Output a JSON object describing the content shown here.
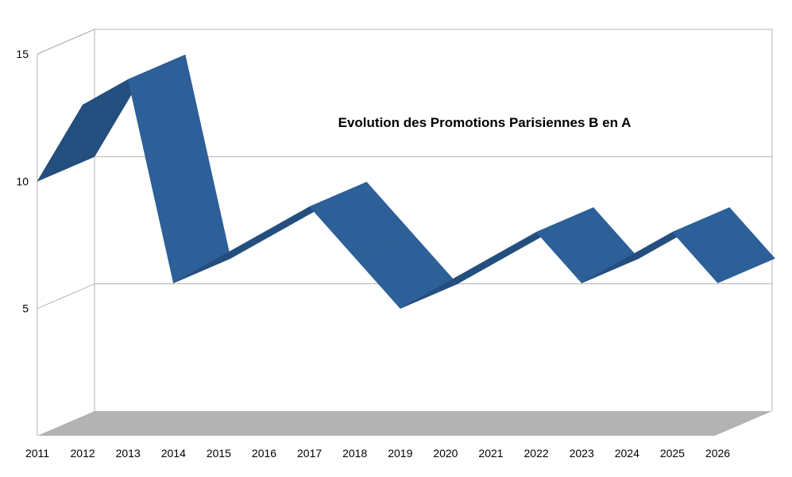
{
  "chart_data": {
    "type": "line",
    "title": "Evolution des Promotions Parisiennes B en A",
    "xlabel": "",
    "ylabel": "",
    "categories": [
      "2011",
      "2012",
      "2013",
      "2014",
      "2015",
      "2016",
      "2017",
      "2018",
      "2019",
      "2020",
      "2021",
      "2022",
      "2023",
      "2024",
      "2025",
      "2026"
    ],
    "series": [
      {
        "values": [
          10,
          13,
          14,
          6,
          7,
          8,
          9,
          7,
          5,
          6,
          7,
          8,
          6,
          7,
          8,
          6
        ]
      }
    ],
    "ylim": [
      0,
      15
    ],
    "yticks": [
      5,
      10,
      15
    ],
    "style": "3d-ribbon",
    "grid": true,
    "legend": "none",
    "colors": {
      "ribbon_top": "#2d5f98",
      "ribbon_side": "#234e7e",
      "floor": "#b3b3b3",
      "grid": "#b3b3b3",
      "text": "#000000"
    }
  }
}
